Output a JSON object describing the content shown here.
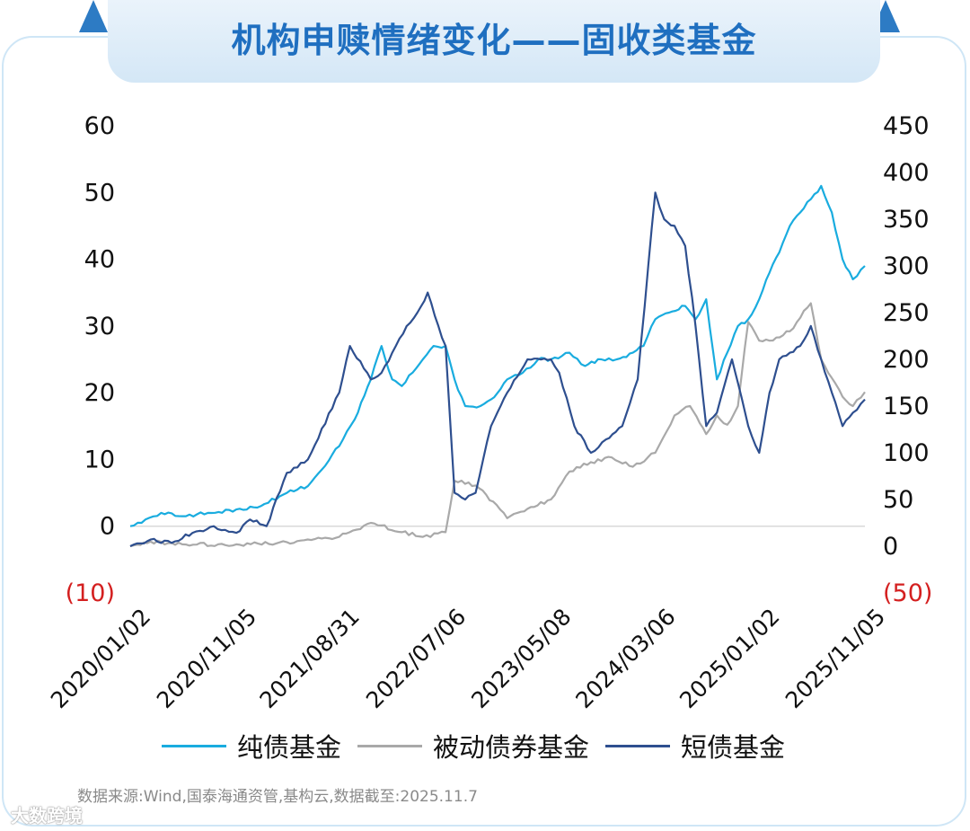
{
  "title": "机构申赎情绪变化——固收类基金",
  "source": "数据来源:Wind,国泰海通资管,基构云,数据截至:2025.11.7",
  "watermark": "大数跨境",
  "legend": [
    {
      "name": "纯债基金",
      "color": "#19acdf"
    },
    {
      "name": "被动债券基金",
      "color": "#a9a9a9"
    },
    {
      "name": "短债基金",
      "color": "#2e4f8f"
    }
  ],
  "chart_data": {
    "type": "line",
    "x_tick_labels": [
      "2020/01/02",
      "2020/11/05",
      "2021/08/31",
      "2022/07/06",
      "2023/05/08",
      "2024/03/06",
      "2025/01/02",
      "2025/11/05"
    ],
    "y_left": {
      "range": [
        -10,
        60
      ],
      "ticks": [
        60,
        50,
        40,
        30,
        20,
        10,
        0,
        -10
      ],
      "tick_labels": [
        "60",
        "50",
        "40",
        "30",
        "20",
        "10",
        "0",
        "(10)"
      ]
    },
    "y_right": {
      "range": [
        -50,
        450
      ],
      "ticks": [
        450,
        400,
        350,
        300,
        250,
        200,
        150,
        100,
        50,
        0,
        -50
      ],
      "tick_labels": [
        "450",
        "400",
        "350",
        "300",
        "250",
        "200",
        "150",
        "100",
        "50",
        "0",
        "(50)"
      ]
    },
    "grid": false,
    "legend_position": "bottom",
    "series": [
      {
        "name": "纯债基金",
        "axis": "left",
        "color": "#19acdf",
        "x": [
          "2020/01/02",
          "2020/02/15",
          "2020/04/01",
          "2020/06/01",
          "2020/08/15",
          "2020/11/05",
          "2021/01/15",
          "2021/04/01",
          "2021/06/01",
          "2021/08/31",
          "2021/10/15",
          "2021/12/01",
          "2022/01/01",
          "2022/02/01",
          "2022/03/01",
          "2022/04/01",
          "2022/05/01",
          "2022/06/01",
          "2022/07/06",
          "2022/08/01",
          "2022/09/01",
          "2022/10/15",
          "2022/11/15",
          "2023/01/01",
          "2023/02/15",
          "2023/04/01",
          "2023/05/08",
          "2023/07/01",
          "2023/08/15",
          "2023/10/01",
          "2023/11/15",
          "2024/01/01",
          "2024/02/01",
          "2024/03/06",
          "2024/04/15",
          "2024/06/01",
          "2024/07/01",
          "2024/08/01",
          "2024/09/01",
          "2024/10/01",
          "2024/11/01",
          "2024/12/01",
          "2025/01/02",
          "2025/02/01",
          "2025/03/01",
          "2025/04/01",
          "2025/05/01",
          "2025/06/01",
          "2025/07/01",
          "2025/08/01",
          "2025/09/01",
          "2025/10/01",
          "2025/11/05"
        ],
        "values": [
          0,
          1,
          2,
          1.5,
          2,
          2.5,
          3,
          5,
          6,
          12,
          16,
          22,
          27,
          22,
          21,
          23,
          25,
          27,
          27,
          22,
          18,
          18,
          19,
          22,
          23,
          25,
          25,
          26,
          24,
          25,
          25,
          26,
          27,
          31,
          32,
          33,
          31,
          34,
          22,
          26,
          30,
          31,
          34,
          38,
          41,
          45,
          47,
          49,
          51,
          47,
          40,
          37,
          39
        ]
      },
      {
        "name": "被动债券基金",
        "axis": "right",
        "color": "#a9a9a9",
        "x": [
          "2020/01/02",
          "2020/03/01",
          "2020/06/01",
          "2020/11/05",
          "2021/03/01",
          "2021/08/31",
          "2021/12/01",
          "2022/03/01",
          "2022/05/01",
          "2022/07/06",
          "2022/08/01",
          "2022/10/01",
          "2022/11/01",
          "2023/01/01",
          "2023/03/01",
          "2023/05/08",
          "2023/07/01",
          "2023/09/01",
          "2023/11/01",
          "2024/01/01",
          "2024/03/06",
          "2024/05/01",
          "2024/06/15",
          "2024/08/01",
          "2024/09/01",
          "2024/10/01",
          "2024/11/01",
          "2024/12/01",
          "2025/01/02",
          "2025/02/01",
          "2025/04/01",
          "2025/06/01",
          "2025/07/01",
          "2025/08/01",
          "2025/09/01",
          "2025/10/01",
          "2025/11/05"
        ],
        "values": [
          0,
          5,
          2,
          2,
          3,
          10,
          25,
          15,
          10,
          15,
          70,
          65,
          55,
          30,
          40,
          50,
          80,
          90,
          95,
          85,
          100,
          140,
          150,
          120,
          140,
          130,
          150,
          240,
          220,
          220,
          230,
          260,
          200,
          180,
          160,
          150,
          165
        ]
      },
      {
        "name": "短债基金",
        "axis": "left",
        "color": "#2e4f8f",
        "x": [
          "2020/01/02",
          "2020/03/01",
          "2020/05/01",
          "2020/07/01",
          "2020/09/01",
          "2020/11/05",
          "2020/12/15",
          "2021/02/01",
          "2021/04/01",
          "2021/06/01",
          "2021/08/31",
          "2021/10/01",
          "2021/12/01",
          "2022/01/01",
          "2022/02/01",
          "2022/03/15",
          "2022/04/15",
          "2022/05/15",
          "2022/06/15",
          "2022/07/06",
          "2022/08/01",
          "2022/09/01",
          "2022/10/01",
          "2022/11/15",
          "2023/01/01",
          "2023/03/01",
          "2023/05/08",
          "2023/06/01",
          "2023/07/15",
          "2023/09/01",
          "2023/10/15",
          "2023/12/01",
          "2024/01/15",
          "2024/03/06",
          "2024/04/01",
          "2024/05/01",
          "2024/06/01",
          "2024/07/01",
          "2024/08/01",
          "2024/09/01",
          "2024/10/15",
          "2024/12/01",
          "2025/01/02",
          "2025/02/01",
          "2025/03/01",
          "2025/04/01",
          "2025/05/01",
          "2025/06/01",
          "2025/07/01",
          "2025/08/01",
          "2025/09/01",
          "2025/10/01",
          "2025/11/05"
        ],
        "values": [
          -3,
          -2,
          -2.5,
          -1,
          0,
          -1,
          1,
          0,
          8,
          10,
          20,
          27,
          22,
          23,
          26,
          30,
          32,
          35,
          30,
          27,
          5,
          4,
          5,
          15,
          20,
          25,
          25,
          23,
          15,
          11,
          13,
          15,
          22,
          50,
          46,
          45,
          42,
          30,
          15,
          17,
          25,
          15,
          11,
          20,
          25,
          26,
          27,
          30,
          25,
          20,
          15,
          17,
          19
        ]
      }
    ]
  }
}
